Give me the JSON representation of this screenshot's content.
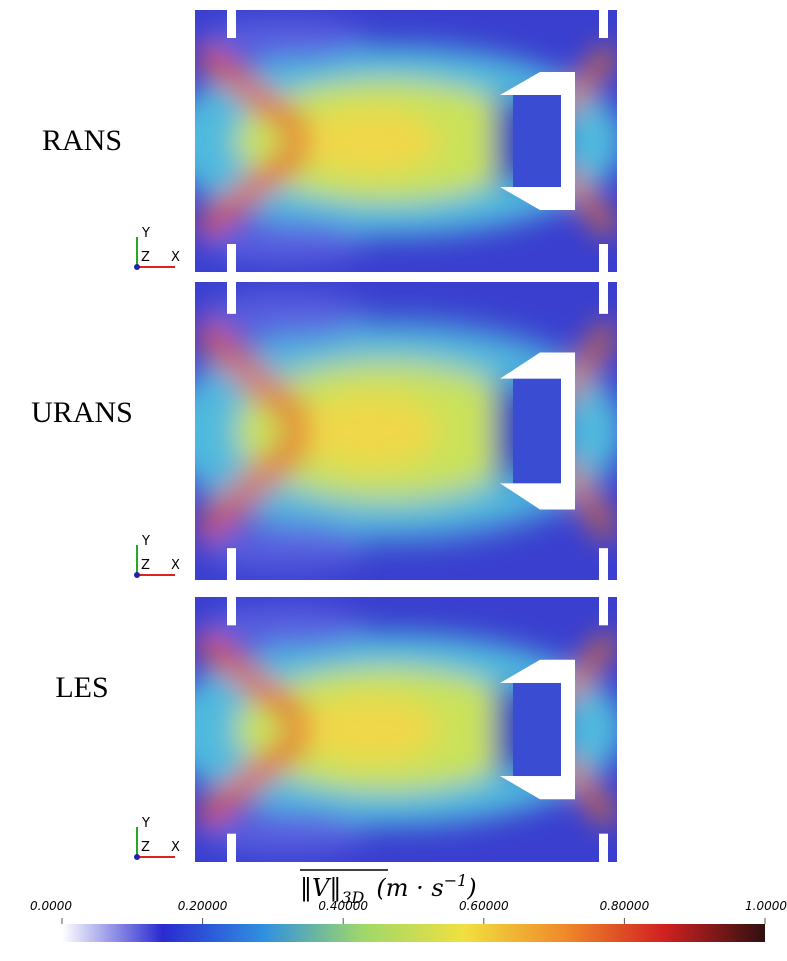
{
  "panels": [
    {
      "label": "RANS",
      "axes": {
        "y": "Y",
        "z": "Z",
        "x": "X"
      }
    },
    {
      "label": "URANS",
      "axes": {
        "y": "Y",
        "z": "Z",
        "x": "X"
      }
    },
    {
      "label": "LES",
      "axes": {
        "y": "Y",
        "z": "Z",
        "x": "X"
      }
    }
  ],
  "colorbar": {
    "title": {
      "norm": "‖V‖",
      "sub": "3D",
      "unit": "(m · s",
      "sup": "−1",
      "close": ")"
    },
    "lim": [
      0,
      1
    ],
    "ticks": [
      {
        "value": 0,
        "label": "0.0000"
      },
      {
        "value": 0.2,
        "label": "0.20000"
      },
      {
        "value": 0.4,
        "label": "0.40000"
      },
      {
        "value": 0.6,
        "label": "0.60000"
      },
      {
        "value": 0.8,
        "label": "0.80000"
      },
      {
        "value": 1,
        "label": "1.0000"
      }
    ],
    "colors": [
      "#ffffff",
      "#2a2ad0",
      "#2f8fe0",
      "#9fd86a",
      "#f0e040",
      "#f08a2a",
      "#d02020",
      "#301010"
    ]
  }
}
